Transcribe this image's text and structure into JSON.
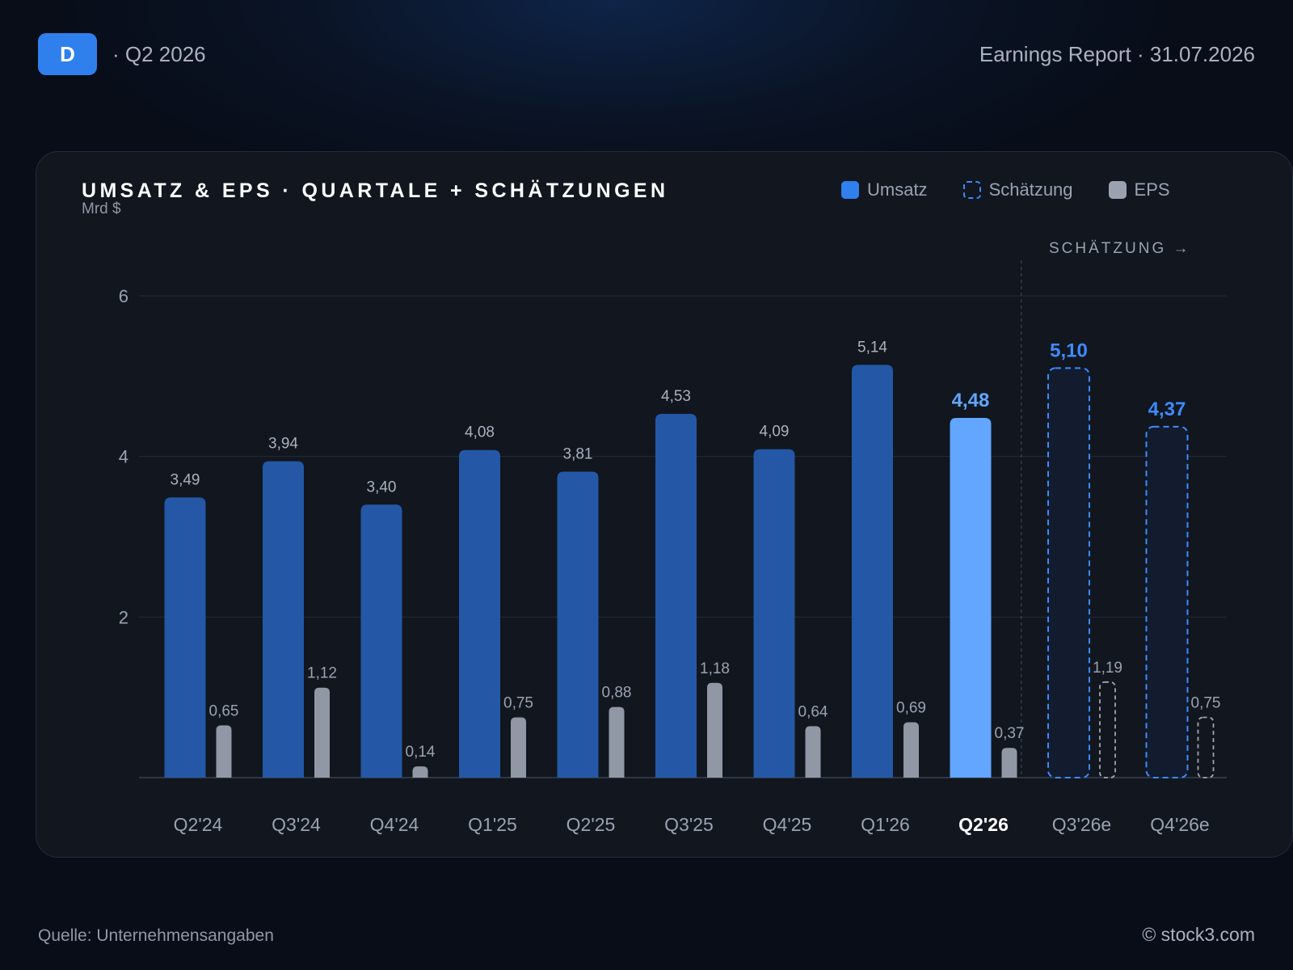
{
  "header": {
    "ticker": "D",
    "period": "· Q2 2026",
    "report": "Earnings Report · 31.07.2026"
  },
  "legend": {
    "umsatz": "Umsatz",
    "estimate": "Schätzung",
    "eps": "EPS"
  },
  "chart_data": {
    "type": "bar",
    "title": "UMSATZ & EPS · QUARTALE + SCHÄTZUNGEN",
    "unit": "Mrd $",
    "estimate_marker": "SCHÄTZUNG →",
    "categories": [
      "Q2'24",
      "Q3'24",
      "Q4'24",
      "Q1'25",
      "Q2'25",
      "Q3'25",
      "Q4'25",
      "Q1'26",
      "Q2'26",
      "Q3'26e",
      "Q4'26e"
    ],
    "series": [
      {
        "name": "Umsatz",
        "values": [
          3.49,
          3.94,
          3.4,
          4.08,
          3.81,
          4.53,
          4.09,
          5.14,
          4.48,
          5.1,
          4.37
        ],
        "labels": [
          "3,49",
          "3,94",
          "3,40",
          "4,08",
          "3,81",
          "4,53",
          "4,09",
          "5,14",
          "4,48",
          "5,10",
          "4,37"
        ]
      },
      {
        "name": "EPS",
        "values": [
          0.65,
          1.12,
          0.14,
          0.75,
          0.88,
          1.18,
          0.64,
          0.69,
          0.37,
          1.19,
          0.75
        ],
        "labels": [
          "0,65",
          "1,12",
          "0,14",
          "0,75",
          "0,88",
          "1,18",
          "0,64",
          "0,69",
          "0,37",
          "1,19",
          "0,75"
        ]
      }
    ],
    "current_index": 8,
    "estimate_from_index": 9,
    "yticks": [
      2,
      4,
      6
    ],
    "ylim": [
      0,
      6.2
    ],
    "grid": true,
    "legend_position": "top-right",
    "colors": {
      "umsatz": "#2458a6",
      "current": "#62a6ff",
      "estimate": "#3d8bff",
      "eps": "#8f98a4",
      "eps_estimate": "#a0a6b0"
    }
  },
  "footer": {
    "source": "Quelle: Unternehmensangaben",
    "brand": "© stock3.com"
  }
}
